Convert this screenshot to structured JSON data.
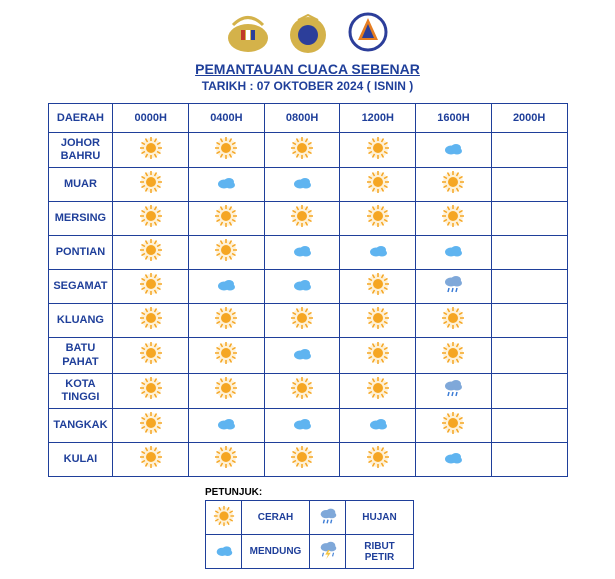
{
  "title": "PEMANTAUAN CUACA SEBENAR",
  "subtitle": "TARIKH : 07 OKTOBER 2024 ( ISNIN )",
  "colors": {
    "blue": "#1f3f9a",
    "sun": "#f5a623",
    "sun_glow": "#fde4b0",
    "cloud": "#5fb4f0",
    "rain_cloud": "#7fa8d9",
    "rain_drop": "#3a7bd5",
    "lightning": "#f5c542"
  },
  "columns": [
    "DAERAH",
    "0000H",
    "0400H",
    "0800H",
    "1200H",
    "1600H",
    "2000H"
  ],
  "rows": [
    {
      "district": "JOHOR BAHRU",
      "cells": [
        "sun",
        "sun",
        "sun",
        "sun",
        "cloud",
        ""
      ]
    },
    {
      "district": "MUAR",
      "cells": [
        "sun",
        "cloud",
        "cloud",
        "sun",
        "sun",
        ""
      ]
    },
    {
      "district": "MERSING",
      "cells": [
        "sun",
        "sun",
        "sun",
        "sun",
        "sun",
        ""
      ]
    },
    {
      "district": "PONTIAN",
      "cells": [
        "sun",
        "sun",
        "cloud",
        "cloud",
        "cloud",
        ""
      ]
    },
    {
      "district": "SEGAMAT",
      "cells": [
        "sun",
        "cloud",
        "cloud",
        "sun",
        "rain",
        ""
      ]
    },
    {
      "district": "KLUANG",
      "cells": [
        "sun",
        "sun",
        "sun",
        "sun",
        "sun",
        ""
      ]
    },
    {
      "district": "BATU PAHAT",
      "cells": [
        "sun",
        "sun",
        "cloud",
        "sun",
        "sun",
        ""
      ]
    },
    {
      "district": "KOTA TINGGI",
      "cells": [
        "sun",
        "sun",
        "sun",
        "sun",
        "rain",
        ""
      ]
    },
    {
      "district": "TANGKAK",
      "cells": [
        "sun",
        "cloud",
        "cloud",
        "cloud",
        "sun",
        ""
      ]
    },
    {
      "district": "KULAI",
      "cells": [
        "sun",
        "sun",
        "sun",
        "sun",
        "cloud",
        ""
      ]
    }
  ],
  "legend": {
    "label": "PETUNJUK:",
    "items": [
      {
        "icon": "sun",
        "label": "CERAH"
      },
      {
        "icon": "rain",
        "label": "HUJAN"
      },
      {
        "icon": "cloud",
        "label": "MENDUNG"
      },
      {
        "icon": "storm",
        "label": "RIBUT PETIR"
      }
    ]
  }
}
